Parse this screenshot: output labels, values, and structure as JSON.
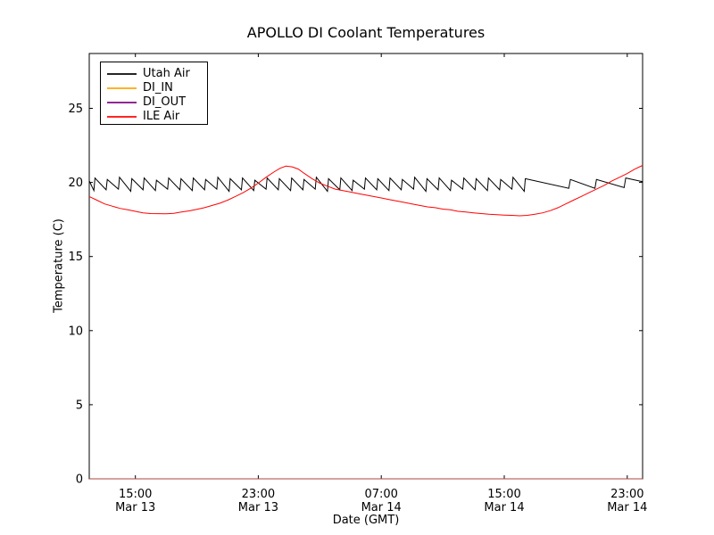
{
  "chart_data": {
    "type": "line",
    "title": "APOLLO DI Coolant Temperatures",
    "xlabel": "Date (GMT)",
    "ylabel": "Temperature (C)",
    "grid": false,
    "legend_position": "upper left",
    "x_unit": "hours after Mar 13 12:00 GMT",
    "xlim": [
      0,
      36
    ],
    "ylim": [
      0,
      28.7
    ],
    "x_ticks": [
      {
        "t": 3,
        "time": "15:00",
        "date": "Mar 13"
      },
      {
        "t": 11,
        "time": "23:00",
        "date": "Mar 13"
      },
      {
        "t": 19,
        "time": "07:00",
        "date": "Mar 14"
      },
      {
        "t": 27,
        "time": "15:00",
        "date": "Mar 14"
      },
      {
        "t": 35,
        "time": "23:00",
        "date": "Mar 14"
      }
    ],
    "y_ticks": [
      {
        "v": 0,
        "label": "0"
      },
      {
        "v": 5,
        "label": "5"
      },
      {
        "v": 10,
        "label": "10"
      },
      {
        "v": 15,
        "label": "15"
      },
      {
        "v": 20,
        "label": "20"
      },
      {
        "v": 25,
        "label": "25"
      }
    ],
    "series": [
      {
        "name": "Utah Air",
        "color": "#000000",
        "opacity": 1,
        "x": [
          0,
          0.3,
          0.37,
          1.1,
          1.17,
          1.9,
          1.97,
          2.7,
          2.77,
          3.5,
          3.57,
          4.3,
          4.37,
          5.1,
          5.17,
          5.9,
          5.97,
          6.7,
          6.77,
          7.5,
          7.57,
          8.3,
          8.37,
          9.1,
          9.17,
          9.9,
          9.97,
          10.7,
          10.77,
          11.5,
          11.57,
          12.3,
          12.37,
          13.1,
          13.17,
          13.9,
          13.97,
          14.7,
          14.77,
          15.5,
          15.57,
          16.3,
          16.37,
          17.1,
          17.17,
          17.9,
          17.97,
          18.7,
          18.77,
          19.5,
          19.57,
          20.3,
          20.37,
          21.1,
          21.17,
          21.9,
          21.97,
          22.7,
          22.77,
          23.5,
          23.57,
          24.3,
          24.37,
          25.1,
          25.17,
          25.9,
          25.97,
          26.7,
          26.77,
          27.5,
          27.57,
          28.3,
          28.37,
          31.2,
          31.3,
          32.9,
          33.0,
          34.8,
          34.9,
          36
        ],
        "y": [
          20.1,
          19.45,
          20.3,
          19.5,
          20.2,
          19.55,
          20.35,
          19.4,
          20.25,
          19.5,
          20.3,
          19.45,
          20.15,
          19.55,
          20.3,
          19.5,
          20.25,
          19.45,
          20.3,
          19.5,
          20.2,
          19.55,
          20.35,
          19.4,
          20.25,
          19.5,
          20.3,
          19.45,
          20.15,
          19.55,
          20.3,
          19.5,
          20.25,
          19.45,
          20.3,
          19.5,
          20.2,
          19.55,
          20.35,
          19.4,
          20.25,
          19.5,
          20.3,
          19.45,
          20.15,
          19.55,
          20.3,
          19.5,
          20.25,
          19.45,
          20.3,
          19.5,
          20.2,
          19.55,
          20.35,
          19.4,
          20.25,
          19.5,
          20.3,
          19.45,
          20.15,
          19.55,
          20.3,
          19.5,
          20.25,
          19.45,
          20.3,
          19.5,
          20.2,
          19.55,
          20.35,
          19.4,
          20.25,
          19.6,
          20.2,
          19.6,
          20.2,
          19.65,
          20.3,
          20.05
        ]
      },
      {
        "name": "DI_IN",
        "color": "#ffa500",
        "opacity": 0.85,
        "x": [
          0,
          36
        ],
        "y": [
          0,
          0
        ]
      },
      {
        "name": "DI_OUT",
        "color": "#800080",
        "opacity": 0.5,
        "x": [
          0,
          36
        ],
        "y": [
          0,
          0
        ]
      },
      {
        "name": "ILE Air",
        "color": "#ff0000",
        "opacity": 1,
        "x": [
          0,
          0.5,
          1,
          1.5,
          2,
          2.5,
          3,
          3.5,
          4,
          5,
          5.5,
          6,
          6.5,
          7,
          7.5,
          8,
          8.5,
          9,
          9.5,
          10,
          10.5,
          11,
          11.5,
          12,
          12.4,
          12.8,
          13.2,
          13.6,
          14,
          14.5,
          15,
          15.5,
          16,
          16.5,
          17,
          17.5,
          18,
          18.5,
          19,
          19.5,
          20,
          20.5,
          21,
          21.5,
          22,
          22.5,
          23,
          23.5,
          24,
          24.5,
          25,
          25.5,
          26,
          26.5,
          27,
          27.5,
          28,
          28.5,
          29,
          29.5,
          30,
          30.5,
          31,
          31.5,
          32,
          32.5,
          33,
          33.5,
          34,
          34.5,
          35,
          35.5,
          36
        ],
        "y": [
          19.05,
          18.8,
          18.55,
          18.4,
          18.25,
          18.15,
          18.05,
          17.95,
          17.9,
          17.88,
          17.92,
          18.0,
          18.08,
          18.18,
          18.3,
          18.45,
          18.6,
          18.8,
          19.05,
          19.3,
          19.6,
          19.95,
          20.35,
          20.7,
          20.95,
          21.1,
          21.05,
          20.9,
          20.6,
          20.25,
          19.95,
          19.75,
          19.55,
          19.45,
          19.35,
          19.25,
          19.15,
          19.05,
          18.95,
          18.85,
          18.75,
          18.65,
          18.55,
          18.45,
          18.35,
          18.3,
          18.2,
          18.15,
          18.05,
          18.0,
          17.95,
          17.9,
          17.85,
          17.82,
          17.8,
          17.78,
          17.75,
          17.78,
          17.85,
          17.95,
          18.1,
          18.3,
          18.55,
          18.8,
          19.05,
          19.3,
          19.55,
          19.8,
          20.1,
          20.35,
          20.6,
          20.9,
          21.15
        ]
      }
    ]
  }
}
